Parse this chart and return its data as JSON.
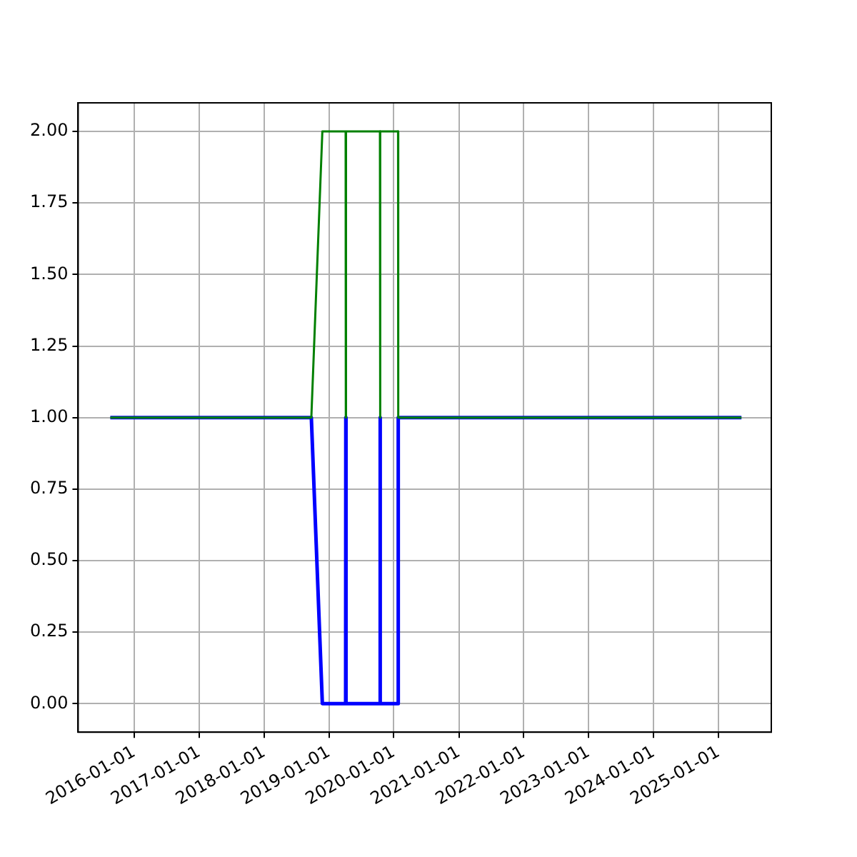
{
  "chart_data": {
    "type": "line",
    "x": [
      "2015-08-20",
      "2018-09-24",
      "2018-11-25",
      "2019-04-05",
      "2019-04-06",
      "2019-04-07",
      "2019-10-15",
      "2019-10-16",
      "2019-10-17",
      "2020-01-25",
      "2020-01-26",
      "2025-05-10"
    ],
    "series": [
      {
        "color": "#0000ff",
        "values": [
          1,
          1,
          0,
          0,
          1,
          0,
          0,
          1,
          0,
          0,
          1,
          1
        ]
      },
      {
        "color": "#008000",
        "values": [
          1,
          1,
          2,
          2,
          1,
          2,
          2,
          1,
          2,
          2,
          1,
          1
        ]
      }
    ],
    "xlim": [
      "2015-02-20",
      "2025-10-25"
    ],
    "xticks": [
      "2016-01-01",
      "2017-01-01",
      "2018-01-01",
      "2019-01-01",
      "2020-01-01",
      "2021-01-01",
      "2022-01-01",
      "2023-01-01",
      "2024-01-01",
      "2025-01-01"
    ],
    "ylim": [
      -0.1,
      2.1
    ],
    "yticks": [
      {
        "value": 0,
        "label": "0.00"
      },
      {
        "value": 0.25,
        "label": "0.25"
      },
      {
        "value": 0.5,
        "label": "0.50"
      },
      {
        "value": 0.75,
        "label": "0.75"
      },
      {
        "value": 1,
        "label": "1.00"
      },
      {
        "value": 1.25,
        "label": "1.25"
      },
      {
        "value": 1.5,
        "label": "1.50"
      },
      {
        "value": 1.75,
        "label": "1.75"
      },
      {
        "value": 2,
        "label": "2.00"
      }
    ],
    "grid": true,
    "legend": false,
    "marker": "none",
    "line_style": "solid"
  }
}
